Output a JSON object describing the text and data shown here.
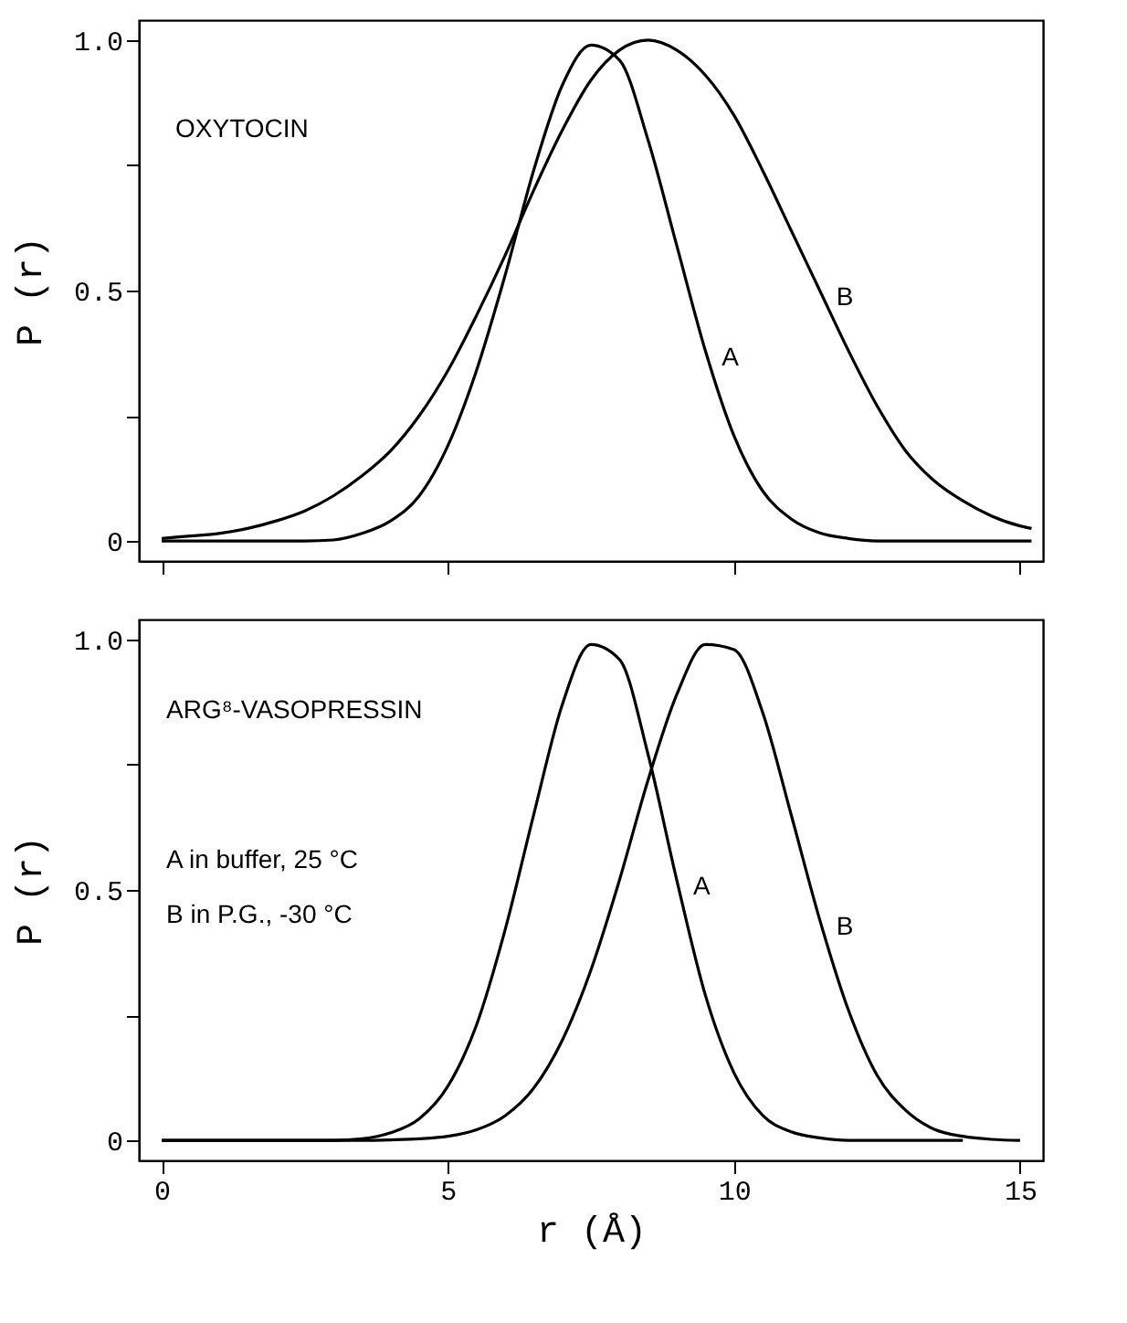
{
  "chart_data": [
    {
      "type": "line",
      "ylabel": "P (r)",
      "xlim": [
        -0.4,
        15.4
      ],
      "ylim": [
        -0.04,
        1.04
      ],
      "xticks": [
        0,
        5,
        10,
        15
      ],
      "yticks": [
        0,
        {
          "value": 0.25,
          "label": null
        },
        {
          "value": 0.5,
          "label": "0.5"
        },
        {
          "value": 0.75,
          "label": null
        },
        {
          "value": 1,
          "label": "1.0"
        }
      ],
      "tick_labels": "y",
      "grid": false,
      "legend": false,
      "line_style": "solid",
      "marker": "none",
      "x": [
        0,
        0.5,
        1,
        1.5,
        2,
        2.5,
        3,
        3.5,
        4,
        4.5,
        5,
        5.5,
        6,
        6.5,
        7,
        7.5,
        8,
        8.5,
        9,
        9.5,
        10,
        10.5,
        11,
        11.5,
        12,
        12.5,
        13,
        13.5,
        14,
        14.5,
        15,
        15.2
      ],
      "series": [
        {
          "name": "A",
          "color": "#000000",
          "values": [
            0,
            0,
            0,
            0,
            0,
            0,
            0.002,
            0.015,
            0.04,
            0.09,
            0.19,
            0.34,
            0.53,
            0.74,
            0.91,
            0.99,
            0.96,
            0.8,
            0.59,
            0.38,
            0.21,
            0.1,
            0.044,
            0.016,
            0.005,
            0,
            0,
            0,
            0,
            0,
            0,
            0
          ]
        },
        {
          "name": "B",
          "color": "#000000",
          "values": [
            0.005,
            0.01,
            0.015,
            0.025,
            0.04,
            0.06,
            0.09,
            0.13,
            0.18,
            0.25,
            0.34,
            0.45,
            0.57,
            0.7,
            0.82,
            0.92,
            0.98,
            1.0,
            0.98,
            0.93,
            0.85,
            0.74,
            0.62,
            0.5,
            0.38,
            0.27,
            0.18,
            0.12,
            0.08,
            0.05,
            0.03,
            0.025
          ]
        }
      ],
      "annotations": [
        "OXYTOCIN"
      ]
    },
    {
      "type": "line",
      "xlabel": "r (Å)",
      "ylabel": "P (r)",
      "xlim": [
        -0.4,
        15.4
      ],
      "ylim": [
        -0.04,
        1.04
      ],
      "xticks": [
        0,
        5,
        10,
        15
      ],
      "yticks": [
        0,
        {
          "value": 0.25,
          "label": null
        },
        {
          "value": 0.5,
          "label": "0.5"
        },
        {
          "value": 0.75,
          "label": null
        },
        {
          "value": 1,
          "label": "1.0"
        }
      ],
      "grid": false,
      "legend": false,
      "line_style": "solid",
      "marker": "none",
      "x": [
        0,
        0.5,
        1,
        1.5,
        2,
        2.5,
        3,
        3.5,
        4,
        4.5,
        5,
        5.5,
        6,
        6.5,
        7,
        7.5,
        8,
        8.5,
        9,
        9.5,
        10,
        10.5,
        11,
        11.5,
        12,
        12.5,
        13,
        13.5,
        14,
        14.5,
        15
      ],
      "series": [
        {
          "name": "A",
          "color": "#000000",
          "x": [
            0,
            0.5,
            1,
            1.5,
            2,
            2.5,
            3,
            3.5,
            4,
            4.5,
            5,
            5.5,
            6,
            6.5,
            7,
            7.5,
            8,
            8.5,
            9,
            9.5,
            10,
            10.5,
            11,
            11.5,
            12,
            12.5,
            13,
            13.5,
            14
          ],
          "values": [
            0,
            0,
            0,
            0,
            0,
            0,
            0,
            0.003,
            0.015,
            0.043,
            0.108,
            0.23,
            0.42,
            0.65,
            0.87,
            0.99,
            0.96,
            0.77,
            0.52,
            0.29,
            0.135,
            0.05,
            0.017,
            0.005,
            0,
            0,
            0,
            0,
            0
          ]
        },
        {
          "name": "B",
          "color": "#000000",
          "values": [
            0,
            0,
            0,
            0,
            0,
            0,
            0,
            0,
            0.001,
            0.003,
            0.008,
            0.021,
            0.049,
            0.104,
            0.2,
            0.34,
            0.52,
            0.72,
            0.89,
            0.99,
            0.98,
            0.855,
            0.65,
            0.44,
            0.26,
            0.13,
            0.06,
            0.022,
            0.008,
            0.002,
            0
          ]
        }
      ],
      "annotations": [
        "ARG⁸-VASOPRESSIN",
        "A  in buffer,  25 °C",
        "B  in P.G.,   -30 °C"
      ]
    }
  ]
}
